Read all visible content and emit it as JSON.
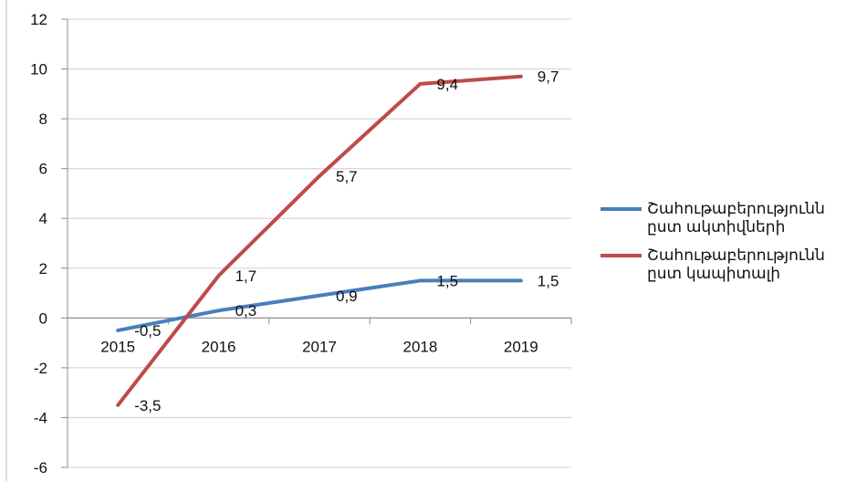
{
  "chart_data": {
    "type": "line",
    "categories": [
      "2015",
      "2016",
      "2017",
      "2018",
      "2019"
    ],
    "ylim": [
      -6,
      12
    ],
    "yticks": [
      "12",
      "10",
      "8",
      "6",
      "4",
      "2",
      "0",
      "-2",
      "-4",
      "-6"
    ],
    "grid": true,
    "legend_position": "right",
    "series": [
      {
        "name_lines": [
          "Շահութաբերությունն",
          "ըստ ակտիվների"
        ],
        "color": "#4a7ebb",
        "values": [
          -0.5,
          0.3,
          0.9,
          1.5,
          1.5
        ],
        "labels": [
          "-0,5",
          "0,3",
          "0,9",
          "1,5",
          "1,5"
        ]
      },
      {
        "name_lines": [
          "Շահութաբերությունն",
          "ըստ կապիտալի"
        ],
        "color": "#be4b48",
        "values": [
          -3.5,
          1.7,
          5.7,
          9.4,
          9.7
        ],
        "labels": [
          "-3,5",
          "1,7",
          "5,7",
          "9,4",
          "9,7"
        ]
      }
    ]
  }
}
